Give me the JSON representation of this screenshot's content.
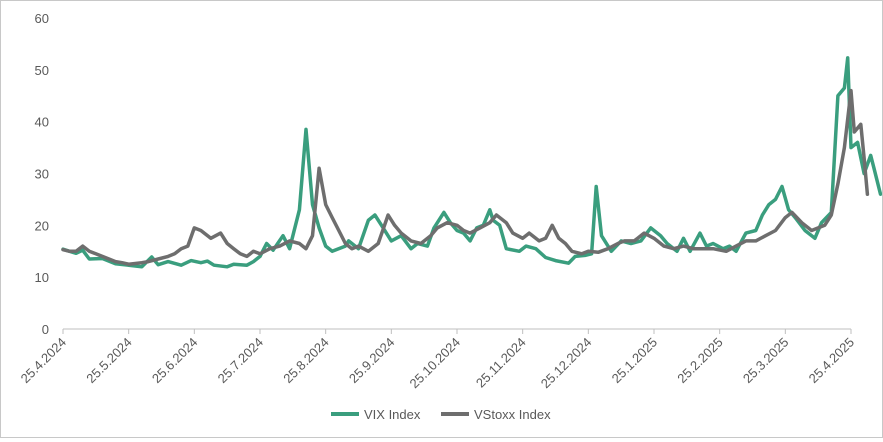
{
  "chart_data": {
    "type": "line",
    "title": "",
    "xlabel": "",
    "ylabel": "",
    "ylim": [
      0,
      60
    ],
    "yticks": [
      "0",
      "10",
      "20",
      "30",
      "40",
      "50",
      "60"
    ],
    "xticks": [
      "25.4.2024",
      "25.5.2024",
      "25.6.2024",
      "25.7.2024",
      "25.8.2024",
      "25.9.2024",
      "25.10.2024",
      "25.11.2024",
      "25.12.2024",
      "25.1.2025",
      "25.2.2025",
      "25.3.2025",
      "25.4.2025"
    ],
    "grid": false,
    "legend_position": "bottom",
    "series": [
      {
        "name": "VIX Index",
        "color": "#3a9e7e",
        "points": [
          [
            0,
            15.4
          ],
          [
            0.1,
            15.0
          ],
          [
            0.2,
            14.6
          ],
          [
            0.3,
            15.2
          ],
          [
            0.4,
            13.5
          ],
          [
            0.6,
            13.6
          ],
          [
            0.8,
            12.6
          ],
          [
            1.0,
            12.3
          ],
          [
            1.2,
            12.0
          ],
          [
            1.35,
            13.9
          ],
          [
            1.45,
            12.4
          ],
          [
            1.6,
            13.0
          ],
          [
            1.8,
            12.3
          ],
          [
            1.95,
            13.2
          ],
          [
            2.1,
            12.8
          ],
          [
            2.2,
            13.1
          ],
          [
            2.3,
            12.3
          ],
          [
            2.5,
            12.0
          ],
          [
            2.6,
            12.5
          ],
          [
            2.8,
            12.3
          ],
          [
            2.9,
            13.0
          ],
          [
            3.0,
            14.0
          ],
          [
            3.1,
            16.5
          ],
          [
            3.2,
            15.2
          ],
          [
            3.35,
            18.0
          ],
          [
            3.45,
            15.5
          ],
          [
            3.6,
            23.0
          ],
          [
            3.7,
            38.5
          ],
          [
            3.8,
            24.0
          ],
          [
            3.9,
            19.5
          ],
          [
            4.0,
            16.0
          ],
          [
            4.1,
            15.0
          ],
          [
            4.3,
            16.0
          ],
          [
            4.35,
            17.0
          ],
          [
            4.5,
            15.5
          ],
          [
            4.65,
            21.0
          ],
          [
            4.75,
            22.0
          ],
          [
            4.85,
            20.0
          ],
          [
            5.0,
            17.0
          ],
          [
            5.15,
            18.0
          ],
          [
            5.3,
            15.5
          ],
          [
            5.4,
            16.5
          ],
          [
            5.55,
            16.0
          ],
          [
            5.65,
            19.5
          ],
          [
            5.8,
            22.5
          ],
          [
            5.9,
            20.5
          ],
          [
            6.0,
            19.0
          ],
          [
            6.1,
            18.5
          ],
          [
            6.2,
            17.0
          ],
          [
            6.3,
            19.5
          ],
          [
            6.4,
            20.0
          ],
          [
            6.5,
            23.0
          ],
          [
            6.55,
            21.0
          ],
          [
            6.65,
            20.0
          ],
          [
            6.75,
            15.5
          ],
          [
            6.95,
            15.0
          ],
          [
            7.05,
            16.0
          ],
          [
            7.2,
            15.5
          ],
          [
            7.35,
            13.8
          ],
          [
            7.5,
            13.2
          ],
          [
            7.7,
            12.7
          ],
          [
            7.8,
            14.0
          ],
          [
            7.95,
            14.2
          ],
          [
            8.05,
            14.5
          ],
          [
            8.12,
            27.5
          ],
          [
            8.2,
            18.0
          ],
          [
            8.35,
            15.0
          ],
          [
            8.5,
            17.0
          ],
          [
            8.65,
            16.5
          ],
          [
            8.8,
            17.0
          ],
          [
            8.95,
            19.5
          ],
          [
            9.1,
            18.0
          ],
          [
            9.2,
            16.5
          ],
          [
            9.35,
            15.0
          ],
          [
            9.45,
            17.5
          ],
          [
            9.55,
            15.0
          ],
          [
            9.7,
            18.5
          ],
          [
            9.8,
            16.0
          ],
          [
            9.9,
            16.5
          ],
          [
            10.05,
            15.5
          ],
          [
            10.15,
            16.0
          ],
          [
            10.25,
            15.0
          ],
          [
            10.4,
            18.5
          ],
          [
            10.55,
            19.0
          ],
          [
            10.65,
            22.0
          ],
          [
            10.75,
            24.0
          ],
          [
            10.85,
            25.0
          ],
          [
            10.95,
            27.5
          ],
          [
            11.05,
            23.0
          ],
          [
            11.15,
            21.5
          ],
          [
            11.3,
            19.0
          ],
          [
            11.45,
            17.5
          ],
          [
            11.55,
            20.5
          ],
          [
            11.7,
            22.5
          ],
          [
            11.8,
            45.0
          ],
          [
            11.9,
            46.5
          ],
          [
            11.95,
            52.3
          ],
          [
            12.0,
            35.0
          ],
          [
            12.1,
            36.0
          ],
          [
            12.2,
            30.0
          ],
          [
            12.3,
            33.5
          ],
          [
            12.35,
            31.0
          ],
          [
            12.45,
            26.0
          ]
        ]
      },
      {
        "name": "VStoxx Index",
        "color": "#6e6e6e",
        "points": [
          [
            0,
            15.3
          ],
          [
            0.1,
            15.0
          ],
          [
            0.2,
            15.0
          ],
          [
            0.3,
            16.0
          ],
          [
            0.4,
            15.0
          ],
          [
            0.5,
            14.5
          ],
          [
            0.6,
            14.0
          ],
          [
            0.7,
            13.5
          ],
          [
            0.8,
            13.0
          ],
          [
            0.9,
            12.8
          ],
          [
            1.0,
            12.5
          ],
          [
            1.2,
            12.8
          ],
          [
            1.3,
            13.0
          ],
          [
            1.45,
            13.5
          ],
          [
            1.6,
            14.0
          ],
          [
            1.7,
            14.5
          ],
          [
            1.8,
            15.5
          ],
          [
            1.9,
            16.0
          ],
          [
            2.0,
            19.5
          ],
          [
            2.1,
            19.0
          ],
          [
            2.25,
            17.5
          ],
          [
            2.4,
            18.5
          ],
          [
            2.5,
            16.5
          ],
          [
            2.6,
            15.5
          ],
          [
            2.7,
            14.5
          ],
          [
            2.8,
            14.0
          ],
          [
            2.9,
            15.0
          ],
          [
            3.0,
            14.5
          ],
          [
            3.15,
            15.5
          ],
          [
            3.3,
            16.0
          ],
          [
            3.45,
            17.0
          ],
          [
            3.6,
            16.5
          ],
          [
            3.7,
            15.5
          ],
          [
            3.8,
            18.0
          ],
          [
            3.9,
            31.0
          ],
          [
            4.0,
            24.0
          ],
          [
            4.1,
            21.5
          ],
          [
            4.2,
            19.0
          ],
          [
            4.3,
            16.5
          ],
          [
            4.4,
            15.5
          ],
          [
            4.5,
            16.0
          ],
          [
            4.65,
            15.0
          ],
          [
            4.8,
            16.5
          ],
          [
            4.95,
            22.0
          ],
          [
            5.05,
            20.0
          ],
          [
            5.15,
            18.5
          ],
          [
            5.3,
            17.0
          ],
          [
            5.45,
            16.5
          ],
          [
            5.6,
            18.0
          ],
          [
            5.7,
            19.5
          ],
          [
            5.85,
            20.5
          ],
          [
            6.0,
            20.0
          ],
          [
            6.1,
            19.0
          ],
          [
            6.2,
            18.5
          ],
          [
            6.35,
            19.5
          ],
          [
            6.5,
            20.5
          ],
          [
            6.6,
            22.0
          ],
          [
            6.75,
            20.5
          ],
          [
            6.85,
            18.5
          ],
          [
            7.0,
            17.5
          ],
          [
            7.1,
            18.5
          ],
          [
            7.25,
            17.0
          ],
          [
            7.35,
            17.5
          ],
          [
            7.45,
            20.0
          ],
          [
            7.55,
            17.5
          ],
          [
            7.65,
            16.5
          ],
          [
            7.75,
            15.0
          ],
          [
            7.9,
            14.5
          ],
          [
            8.0,
            15.0
          ],
          [
            8.15,
            14.8
          ],
          [
            8.3,
            15.5
          ],
          [
            8.45,
            16.5
          ],
          [
            8.55,
            17.0
          ],
          [
            8.7,
            17.0
          ],
          [
            8.85,
            18.5
          ],
          [
            9.0,
            17.5
          ],
          [
            9.15,
            16.0
          ],
          [
            9.3,
            15.5
          ],
          [
            9.45,
            16.0
          ],
          [
            9.6,
            15.5
          ],
          [
            9.75,
            15.5
          ],
          [
            9.9,
            15.5
          ],
          [
            10.1,
            15.0
          ],
          [
            10.25,
            16.0
          ],
          [
            10.4,
            17.0
          ],
          [
            10.55,
            17.0
          ],
          [
            10.7,
            18.0
          ],
          [
            10.85,
            19.0
          ],
          [
            11.0,
            21.5
          ],
          [
            11.1,
            22.5
          ],
          [
            11.25,
            20.5
          ],
          [
            11.4,
            19.0
          ],
          [
            11.6,
            20.0
          ],
          [
            11.7,
            22.0
          ],
          [
            11.8,
            28.0
          ],
          [
            11.9,
            35.0
          ],
          [
            12.0,
            46.0
          ],
          [
            12.05,
            38.0
          ],
          [
            12.15,
            39.5
          ],
          [
            12.2,
            33.0
          ],
          [
            12.25,
            26.0
          ]
        ]
      }
    ]
  }
}
